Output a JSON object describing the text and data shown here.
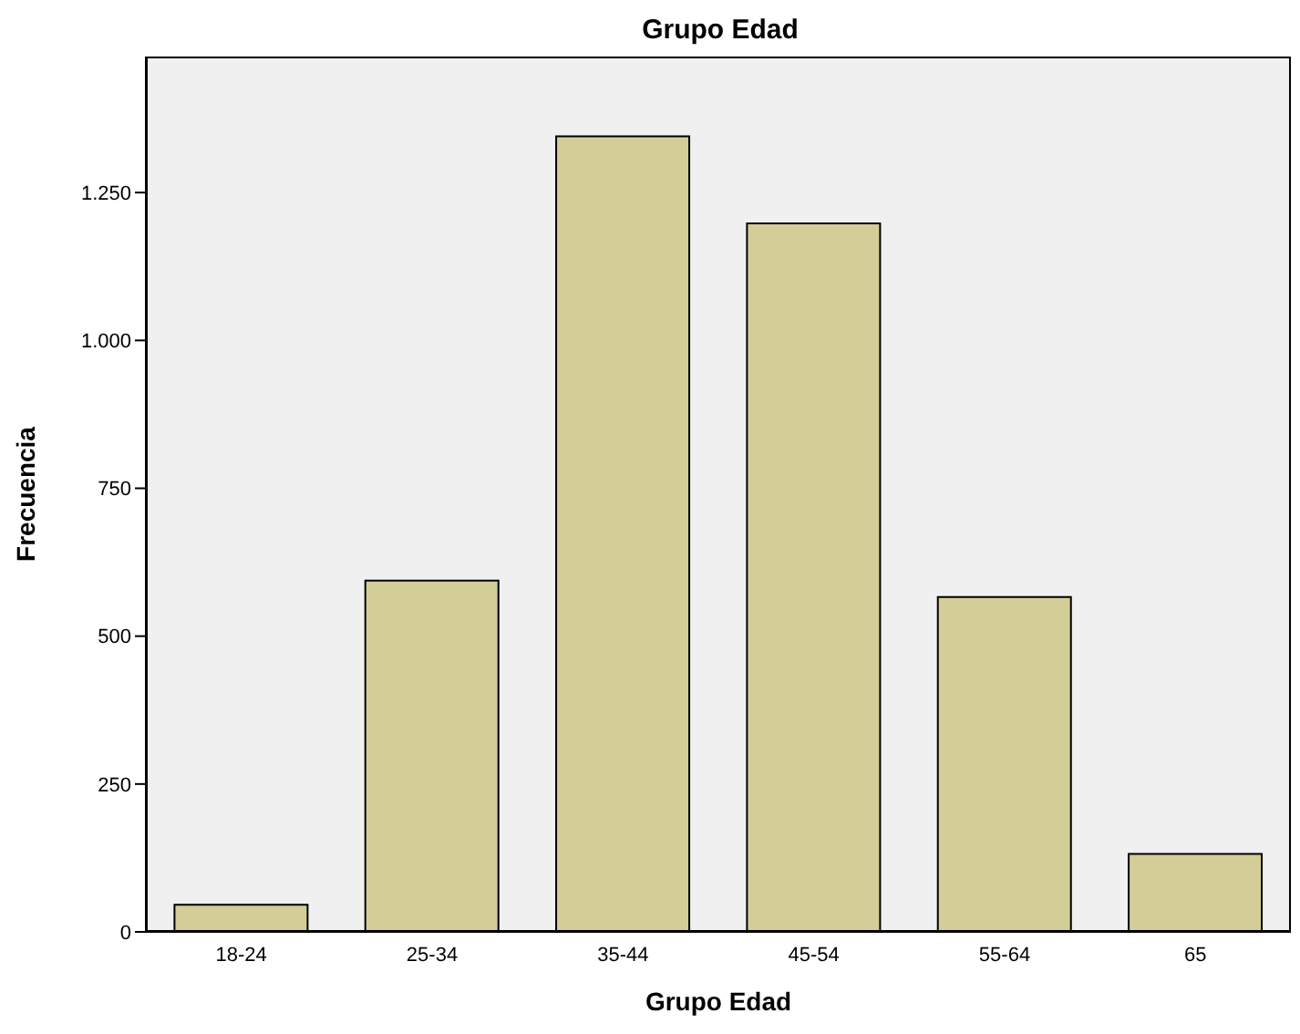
{
  "chart_data": {
    "type": "bar",
    "title": "Grupo Edad",
    "xlabel": "Grupo Edad",
    "ylabel": "Frecuencia",
    "categories": [
      "18-24",
      "25-34",
      "35-44",
      "45-54",
      "55-64",
      "65"
    ],
    "values": [
      46,
      594,
      1345,
      1198,
      566,
      132
    ],
    "color": "#d3ce97",
    "ylim": [
      0,
      1480
    ],
    "yticks": [
      0,
      250,
      500,
      750,
      {
        "value": 1000,
        "label": "1.000"
      },
      {
        "value": 1250,
        "label": "1.250"
      }
    ],
    "grid": false
  }
}
